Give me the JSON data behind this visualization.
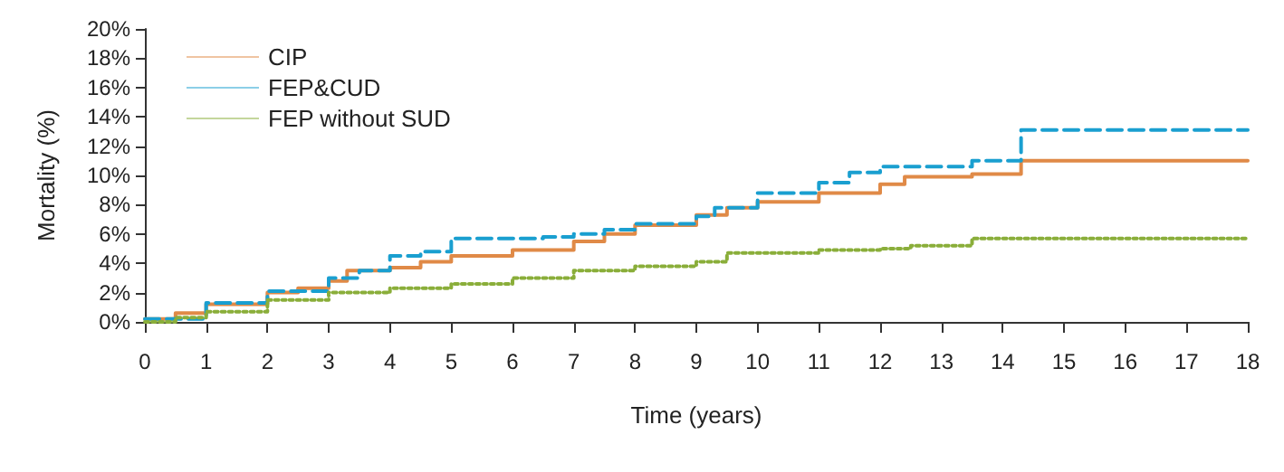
{
  "chart_data": {
    "type": "step",
    "xlabel": "Time (years)",
    "ylabel": "Mortality (%)",
    "xlim": [
      0,
      18
    ],
    "xticks": [
      0,
      1,
      2,
      3,
      4,
      5,
      6,
      7,
      8,
      9,
      10,
      11,
      12,
      13,
      14,
      15,
      16,
      17,
      18
    ],
    "ylim": [
      0,
      20
    ],
    "yticks": [
      {
        "value": 0,
        "label": "0%"
      },
      {
        "value": 2,
        "label": "2%"
      },
      {
        "value": 4,
        "label": "4%"
      },
      {
        "value": 6,
        "label": "6%"
      },
      {
        "value": 8,
        "label": "8%"
      },
      {
        "value": 10,
        "label": "10%"
      },
      {
        "value": 12,
        "label": "12%"
      },
      {
        "value": 14,
        "label": "14%"
      },
      {
        "value": 16,
        "label": "16%"
      },
      {
        "value": 18,
        "label": "18%"
      },
      {
        "value": 20,
        "label": "20%"
      }
    ],
    "grid": false,
    "legend": "top left",
    "marker": "none",
    "series": [
      {
        "name": "CIP",
        "color": "#e08a47",
        "line_style": "solid",
        "x": [
          0,
          0.5,
          1,
          2,
          2.5,
          3,
          3.3,
          4,
          4.5,
          5,
          6,
          7,
          7.5,
          8,
          9,
          9.5,
          10,
          11,
          12,
          12.4,
          13.5,
          14.3,
          18
        ],
        "values": [
          0.2,
          0.6,
          1.2,
          2.0,
          2.3,
          2.8,
          3.5,
          3.7,
          4.1,
          4.5,
          4.9,
          5.5,
          6.0,
          6.6,
          7.3,
          7.8,
          8.2,
          8.8,
          9.4,
          9.9,
          10.1,
          11.0,
          11.0
        ]
      },
      {
        "name": "FEP&CUD",
        "color": "#1a9fd0",
        "line_style": "dashed",
        "x": [
          0,
          1,
          2,
          3,
          3.5,
          4,
          4.5,
          5,
          6.5,
          7,
          7.5,
          8,
          9,
          9.3,
          10,
          11,
          11.5,
          12,
          13,
          13.5,
          14.3,
          18
        ],
        "values": [
          0.2,
          1.3,
          2.1,
          3.0,
          3.5,
          4.5,
          4.8,
          5.7,
          5.8,
          6.0,
          6.3,
          6.7,
          7.2,
          7.8,
          8.8,
          9.5,
          10.2,
          10.6,
          10.6,
          11.0,
          13.1,
          13.1
        ]
      },
      {
        "name": "FEP without SUD",
        "color": "#8aae3a",
        "line_style": "dotted",
        "x": [
          0,
          0.5,
          1,
          2,
          3,
          4,
          5,
          6,
          7,
          8,
          9,
          9.5,
          10,
          11,
          12,
          12.5,
          13.5,
          18
        ],
        "values": [
          0,
          0.3,
          0.7,
          1.5,
          2.0,
          2.3,
          2.6,
          3.0,
          3.5,
          3.8,
          4.1,
          4.7,
          4.7,
          4.9,
          5.0,
          5.2,
          5.7,
          5.7
        ]
      }
    ]
  }
}
